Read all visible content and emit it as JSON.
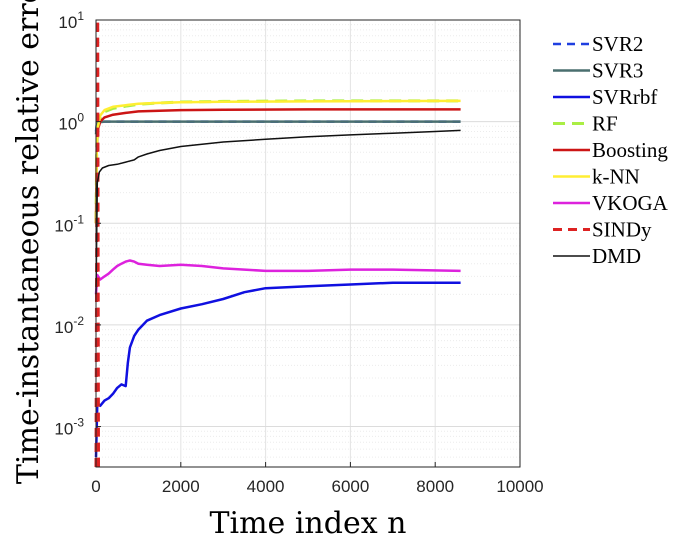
{
  "chart_data": {
    "type": "line",
    "xlabel": "Time index n",
    "ylabel": "Time-instantaneous relative error",
    "xlim": [
      0,
      10000
    ],
    "ylim": [
      0.0004,
      10
    ],
    "yscale": "log",
    "grid": true,
    "legend_position": "outside-right",
    "x_ticks": [
      {
        "value": 0,
        "label": "0"
      },
      {
        "value": 2000,
        "label": "2000"
      },
      {
        "value": 4000,
        "label": "4000"
      },
      {
        "value": 6000,
        "label": "6000"
      },
      {
        "value": 8000,
        "label": "8000"
      },
      {
        "value": 10000,
        "label": "10000"
      }
    ],
    "y_ticks": [
      {
        "value": 0.001,
        "base": "10",
        "exp": "-3"
      },
      {
        "value": 0.01,
        "base": "10",
        "exp": "-2"
      },
      {
        "value": 0.1,
        "base": "10",
        "exp": "-1"
      },
      {
        "value": 1,
        "base": "10",
        "exp": "0"
      },
      {
        "value": 10,
        "base": "10",
        "exp": "1"
      }
    ],
    "series": [
      {
        "name": "SVR2",
        "color": "#1f3fe0",
        "dash": "8,6",
        "width": 2.5,
        "x": [
          0,
          20,
          50,
          100,
          200,
          400,
          1000,
          2000,
          4000,
          6000,
          8600
        ],
        "y": [
          0.8,
          0.95,
          0.98,
          0.99,
          1.0,
          1.0,
          1.0,
          1.0,
          1.0,
          1.0,
          1.0
        ]
      },
      {
        "name": "SVR3",
        "color": "#4a6f6f",
        "dash": "",
        "width": 2.5,
        "x": [
          0,
          20,
          50,
          100,
          200,
          400,
          1000,
          2000,
          4000,
          6000,
          8600
        ],
        "y": [
          0.75,
          0.94,
          0.98,
          0.99,
          1.0,
          1.0,
          1.0,
          1.0,
          1.0,
          1.0,
          1.0
        ]
      },
      {
        "name": "SVRrbf",
        "color": "#1010e0",
        "dash": "",
        "width": 2.5,
        "x": [
          0,
          30,
          100,
          200,
          300,
          400,
          500,
          600,
          700,
          750,
          800,
          900,
          1000,
          1200,
          1500,
          2000,
          2500,
          3000,
          3500,
          4000,
          5000,
          6000,
          7000,
          8600
        ],
        "y": [
          0.0005,
          0.0017,
          0.0016,
          0.0018,
          0.0019,
          0.0021,
          0.0024,
          0.0026,
          0.0025,
          0.0042,
          0.006,
          0.0078,
          0.009,
          0.011,
          0.0125,
          0.0145,
          0.016,
          0.018,
          0.021,
          0.023,
          0.024,
          0.025,
          0.026,
          0.026
        ]
      },
      {
        "name": "RF",
        "color": "#aaee44",
        "dash": "12,7",
        "width": 3,
        "x": [
          0,
          20,
          50,
          100,
          200,
          400,
          700,
          1000,
          1500,
          2000,
          3000,
          5000,
          8600
        ],
        "y": [
          0.1,
          0.6,
          0.9,
          1.1,
          1.25,
          1.35,
          1.42,
          1.48,
          1.53,
          1.56,
          1.58,
          1.6,
          1.6
        ]
      },
      {
        "name": "Boosting",
        "color": "#cc1515",
        "dash": "",
        "width": 2.5,
        "x": [
          0,
          20,
          50,
          100,
          200,
          400,
          700,
          1000,
          1500,
          2000,
          3000,
          5000,
          8600
        ],
        "y": [
          0.1,
          0.6,
          0.85,
          1.0,
          1.1,
          1.17,
          1.22,
          1.26,
          1.28,
          1.3,
          1.31,
          1.32,
          1.32
        ]
      },
      {
        "name": "k-NN",
        "color": "#ffee33",
        "dash": "",
        "width": 2.5,
        "x": [
          0,
          20,
          50,
          100,
          200,
          400,
          700,
          1000,
          1500,
          2000,
          3000,
          5000,
          8600
        ],
        "y": [
          0.1,
          0.6,
          0.9,
          1.15,
          1.3,
          1.4,
          1.45,
          1.5,
          1.53,
          1.55,
          1.57,
          1.58,
          1.6
        ]
      },
      {
        "name": "VKOGA",
        "color": "#dd22dd",
        "dash": "",
        "width": 2.5,
        "x": [
          0,
          30,
          100,
          200,
          300,
          400,
          500,
          600,
          700,
          800,
          900,
          1000,
          1200,
          1500,
          2000,
          2500,
          3000,
          3500,
          4000,
          5000,
          6000,
          7000,
          8600
        ],
        "y": [
          0.02,
          0.031,
          0.028,
          0.03,
          0.032,
          0.035,
          0.038,
          0.04,
          0.042,
          0.043,
          0.042,
          0.04,
          0.039,
          0.038,
          0.039,
          0.038,
          0.036,
          0.035,
          0.034,
          0.034,
          0.035,
          0.035,
          0.034
        ]
      },
      {
        "name": "SINDy",
        "color": "#dd2222",
        "dash": "9,6",
        "width": 3,
        "x": [
          0,
          30,
          40,
          60
        ],
        "y": [
          0.0004,
          10,
          10,
          0.0004
        ]
      },
      {
        "name": "DMD",
        "color": "#111111",
        "dash": "",
        "width": 1.5,
        "x": [
          0,
          30,
          80,
          150,
          300,
          500,
          700,
          900,
          1000,
          1200,
          1500,
          2000,
          2500,
          3000,
          4000,
          5000,
          6000,
          7000,
          8000,
          8600
        ],
        "y": [
          0.02,
          0.25,
          0.32,
          0.35,
          0.37,
          0.38,
          0.4,
          0.42,
          0.45,
          0.48,
          0.52,
          0.57,
          0.6,
          0.63,
          0.67,
          0.71,
          0.74,
          0.77,
          0.8,
          0.82
        ]
      }
    ]
  }
}
